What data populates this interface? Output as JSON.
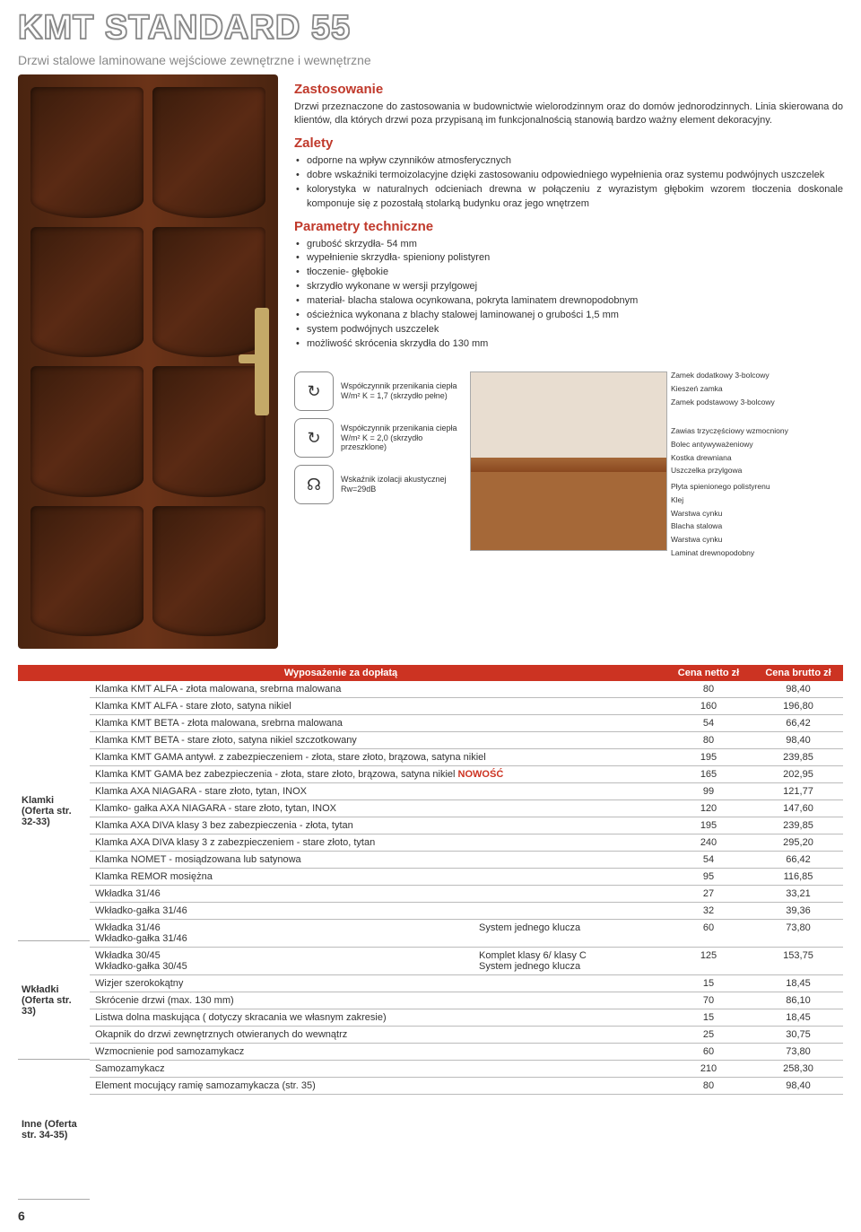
{
  "title": "KMT STANDARD 55",
  "subtitle": "Drzwi stalowe laminowane wejściowe zewnętrzne i wewnętrzne",
  "zastosowanie": {
    "heading": "Zastosowanie",
    "p1": "Drzwi przeznaczone do zastosowania w budownictwie wielorodzinnym oraz do domów jednorodzinnych. Linia skierowana do klientów, dla których drzwi poza przypisaną im funkcjonalnością stanowią bardzo ważny element dekoracyjny."
  },
  "zalety": {
    "heading": "Zalety",
    "items": [
      "odporne na wpływ czynników atmosferycznych",
      "dobre wskaźniki termoizolacyjne dzięki zastosowaniu odpowiedniego wypełnienia oraz systemu podwójnych uszczelek",
      "kolorystyka w naturalnych odcieniach drewna w połączeniu z wyrazistym głębokim wzorem tłoczenia doskonale komponuje się z pozostałą stolarką budynku oraz jego wnętrzem"
    ]
  },
  "parametry": {
    "heading": "Parametry techniczne",
    "items": [
      "grubość skrzydła- 54 mm",
      "wypełnienie skrzydła- spieniony polistyren",
      "tłoczenie- głębokie",
      "skrzydło wykonane w wersji przylgowej",
      "materiał- blacha stalowa ocynkowana, pokryta laminatem drewnopodobnym",
      "ościeżnica wykonana z blachy stalowej laminowanej o grubości 1,5 mm",
      "system podwójnych uszczelek",
      "możliwość skrócenia skrzydła do 130 mm"
    ]
  },
  "coeffs": [
    {
      "glyph": "↻",
      "text": "Współczynnik przenikania ciepła W/m² K = 1,7 (skrzydło pełne)"
    },
    {
      "glyph": "↻",
      "text": "Współczynnik przenikania ciepła W/m² K = 2,0 (skrzydło przeszklone)"
    },
    {
      "glyph": "☊",
      "text": "Wskaźnik izolacji akustycznej Rw=29dB"
    }
  ],
  "cross_labels_top": [
    "Zamek dodatkowy 3-bolcowy",
    "Kieszeń zamka",
    "Zamek podstawowy 3-bolcowy"
  ],
  "cross_labels_mid": [
    "Zawias trzyczęściowy wzmocniony",
    "Bolec antywyważeniowy",
    "Kostka drewniana",
    "Uszczelka przylgowa"
  ],
  "cross_labels_bot": [
    "Płyta spienionego polistyrenu",
    "Klej",
    "Warstwa cynku",
    "Blacha stalowa",
    "Warstwa cynku",
    "Laminat drewnopodobny"
  ],
  "table": {
    "headers": {
      "c1": "Wyposażenie za dopłatą",
      "c2": "Cena netto zł",
      "c3": "Cena brutto zł"
    },
    "groups": [
      {
        "label": "Klamki (Oferta str. 32-33)",
        "height": "h1",
        "rows": [
          {
            "d": "Klamka KMT ALFA - złota malowana, srebrna malowana",
            "n": "80",
            "b": "98,40"
          },
          {
            "d": "Klamka KMT ALFA - stare złoto, satyna nikiel",
            "n": "160",
            "b": "196,80"
          },
          {
            "d": "Klamka KMT BETA - złota malowana, srebrna malowana",
            "n": "54",
            "b": "66,42"
          },
          {
            "d": "Klamka KMT BETA - stare złoto, satyna nikiel szczotkowany",
            "n": "80",
            "b": "98,40"
          },
          {
            "d": "Klamka KMT GAMA antywł. z zabezpieczeniem - złota, stare złoto, brązowa, satyna nikiel",
            "n": "195",
            "b": "239,85"
          },
          {
            "d": "Klamka KMT GAMA bez zabezpieczenia - złota, stare złoto, brązowa, satyna nikiel",
            "nowość": "NOWOŚĆ",
            "n": "165",
            "b": "202,95"
          },
          {
            "d": "Klamka AXA NIAGARA - stare złoto, tytan, INOX",
            "n": "99",
            "b": "121,77"
          },
          {
            "d": "Klamko- gałka AXA NIAGARA - stare złoto, tytan, INOX",
            "n": "120",
            "b": "147,60"
          },
          {
            "d": "Klamka AXA DIVA klasy 3 bez zabezpieczenia - złota, tytan",
            "n": "195",
            "b": "239,85"
          },
          {
            "d": "Klamka AXA DIVA klasy 3 z zabezpieczeniem - stare złoto, tytan",
            "n": "240",
            "b": "295,20"
          },
          {
            "d": "Klamka NOMET - mosiądzowana lub satynowa",
            "n": "54",
            "b": "66,42"
          },
          {
            "d": "Klamka REMOR mosiężna",
            "n": "95",
            "b": "116,85"
          }
        ]
      },
      {
        "label": "Wkładki (Oferta str. 33)",
        "height": "h2",
        "rows": [
          {
            "d": "Wkładka 31/46",
            "n": "27",
            "b": "33,21"
          },
          {
            "d": "Wkładko-gałka 31/46",
            "n": "32",
            "b": "39,36"
          },
          {
            "sys": true,
            "d1a": "Wkładka 31/46",
            "d1b": "Wkładko-gałka 31/46",
            "d2": "System jednego klucza",
            "n": "60",
            "b": "73,80"
          },
          {
            "sys": true,
            "d1a": "Wkładka 30/45",
            "d1b": "Wkładko-gałka 30/45",
            "d2a": "Komplet klasy 6/ klasy C",
            "d2b": "System jednego klucza",
            "n": "125",
            "b": "153,75"
          }
        ]
      },
      {
        "label": "Inne (Oferta str. 34-35)",
        "height": "h3",
        "rows": [
          {
            "d": "Wizjer szerokokątny",
            "n": "15",
            "b": "18,45"
          },
          {
            "d": "Skrócenie drzwi (max. 130 mm)",
            "n": "70",
            "b": "86,10"
          },
          {
            "d": "Listwa dolna maskująca ( dotyczy skracania we własnym zakresie)",
            "n": "15",
            "b": "18,45"
          },
          {
            "d": "Okapnik do drzwi zewnętrznych otwieranych do wewnątrz",
            "n": "25",
            "b": "30,75"
          },
          {
            "d": "Wzmocnienie pod samozamykacz",
            "n": "60",
            "b": "73,80"
          },
          {
            "d": "Samozamykacz",
            "n": "210",
            "b": "258,30"
          },
          {
            "d": "Element mocujący ramię samozamykacza (str. 35)",
            "n": "80",
            "b": "98,40"
          }
        ]
      }
    ]
  },
  "page_num": "6"
}
